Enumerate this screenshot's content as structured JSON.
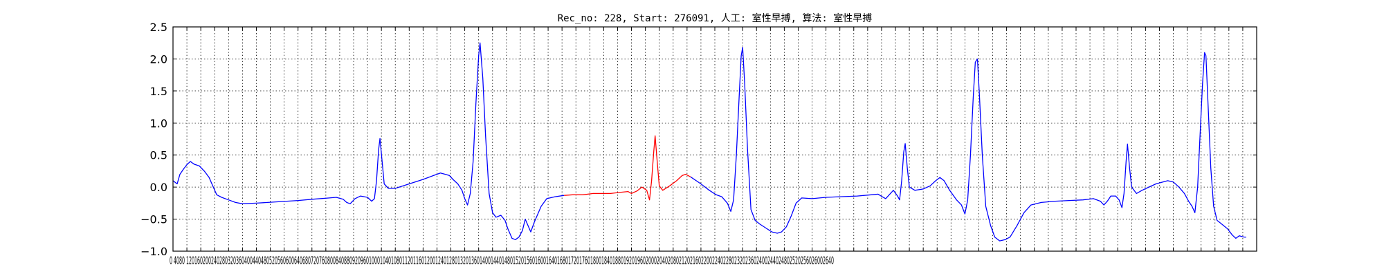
{
  "chart_data": {
    "type": "line",
    "title": "Rec_no: 228, Start: 276091, 人工: 室性早搏, 算法: 室性早搏",
    "xlabel": "",
    "ylabel": "",
    "xlim": [
      0,
      1560
    ],
    "ylim": [
      -1.0,
      2.5
    ],
    "grid": true,
    "y_ticks": [
      "−1.0",
      "−0.5",
      "0.0",
      "0.5",
      "1.0",
      "1.5",
      "2.0",
      "2.5"
    ],
    "x_ticks": [
      "0",
      "40",
      "80",
      "120",
      "160",
      "200",
      "240",
      "280",
      "320",
      "360",
      "400",
      "440",
      "480",
      "520",
      "560",
      "600",
      "640",
      "680",
      "720",
      "760",
      "800",
      "840",
      "880",
      "920",
      "960",
      "1000",
      "1040",
      "1080",
      "1120",
      "1160",
      "1200",
      "1240",
      "1280",
      "1320",
      "1360",
      "1400",
      "1440",
      "1480",
      "1520",
      "1560"
    ],
    "x_tick_text": "0 4080 120160200240280320360400440480520560600640680720760800840880920960100010401080112011601200124012801320136014001440148015201560160016401680172017601800184018801920196020002040208021202160220022402280232023602400244024802520256026002640",
    "highlight_range": [
      563,
      745
    ],
    "series": [
      {
        "color": "#0000ff",
        "points": [
          [
            0,
            0.1
          ],
          [
            6,
            0.05
          ],
          [
            10,
            0.2
          ],
          [
            15,
            0.28
          ],
          [
            20,
            0.35
          ],
          [
            25,
            0.4
          ],
          [
            30,
            0.36
          ],
          [
            38,
            0.33
          ],
          [
            45,
            0.25
          ],
          [
            52,
            0.15
          ],
          [
            58,
            0.0
          ],
          [
            63,
            -0.12
          ],
          [
            70,
            -0.16
          ],
          [
            80,
            -0.2
          ],
          [
            90,
            -0.24
          ],
          [
            100,
            -0.26
          ],
          [
            120,
            -0.25
          ],
          [
            150,
            -0.23
          ],
          [
            180,
            -0.21
          ],
          [
            200,
            -0.19
          ],
          [
            225,
            -0.17
          ],
          [
            235,
            -0.16
          ],
          [
            245,
            -0.19
          ],
          [
            250,
            -0.24
          ],
          [
            255,
            -0.26
          ],
          [
            262,
            -0.18
          ],
          [
            270,
            -0.14
          ],
          [
            280,
            -0.16
          ],
          [
            286,
            -0.22
          ],
          [
            290,
            -0.18
          ],
          [
            293,
            0.1
          ],
          [
            296,
            0.58
          ],
          [
            298,
            0.76
          ],
          [
            301,
            0.4
          ],
          [
            304,
            0.05
          ],
          [
            310,
            -0.02
          ],
          [
            320,
            -0.02
          ],
          [
            340,
            0.05
          ],
          [
            360,
            0.12
          ],
          [
            375,
            0.18
          ],
          [
            385,
            0.22
          ],
          [
            392,
            0.2
          ],
          [
            398,
            0.18
          ],
          [
            403,
            0.12
          ],
          [
            410,
            0.05
          ],
          [
            416,
            -0.05
          ],
          [
            420,
            -0.18
          ],
          [
            424,
            -0.28
          ],
          [
            428,
            -0.1
          ],
          [
            432,
            0.4
          ],
          [
            436,
            1.3
          ],
          [
            440,
            2.05
          ],
          [
            442,
            2.25
          ],
          [
            446,
            1.7
          ],
          [
            450,
            0.8
          ],
          [
            455,
            -0.1
          ],
          [
            460,
            -0.4
          ],
          [
            465,
            -0.47
          ],
          [
            472,
            -0.44
          ],
          [
            478,
            -0.52
          ],
          [
            482,
            -0.65
          ],
          [
            488,
            -0.8
          ],
          [
            493,
            -0.82
          ],
          [
            498,
            -0.78
          ],
          [
            503,
            -0.68
          ],
          [
            507,
            -0.5
          ],
          [
            511,
            -0.6
          ],
          [
            515,
            -0.7
          ],
          [
            520,
            -0.55
          ],
          [
            530,
            -0.3
          ],
          [
            538,
            -0.18
          ],
          [
            550,
            -0.15
          ],
          [
            563,
            -0.13
          ]
        ]
      },
      {
        "color": "#ff0000",
        "points": [
          [
            563,
            -0.13
          ],
          [
            575,
            -0.12
          ],
          [
            590,
            -0.12
          ],
          [
            605,
            -0.1
          ],
          [
            630,
            -0.1
          ],
          [
            645,
            -0.08
          ],
          [
            655,
            -0.07
          ],
          [
            660,
            -0.1
          ],
          [
            668,
            -0.06
          ],
          [
            675,
            -0.0
          ],
          [
            682,
            -0.05
          ],
          [
            686,
            -0.2
          ],
          [
            689,
            0.1
          ],
          [
            692,
            0.55
          ],
          [
            694,
            0.8
          ],
          [
            697,
            0.4
          ],
          [
            700,
            0.02
          ],
          [
            705,
            -0.05
          ],
          [
            715,
            0.02
          ],
          [
            725,
            0.1
          ],
          [
            733,
            0.18
          ],
          [
            738,
            0.2
          ],
          [
            745,
            0.16
          ]
        ]
      },
      {
        "color": "#0000ff",
        "points": [
          [
            745,
            0.16
          ],
          [
            760,
            0.05
          ],
          [
            772,
            -0.05
          ],
          [
            782,
            -0.12
          ],
          [
            790,
            -0.15
          ],
          [
            798,
            -0.25
          ],
          [
            803,
            -0.38
          ],
          [
            807,
            -0.2
          ],
          [
            811,
            0.5
          ],
          [
            815,
            1.4
          ],
          [
            818,
            2.05
          ],
          [
            820,
            2.18
          ],
          [
            823,
            1.6
          ],
          [
            827,
            0.6
          ],
          [
            832,
            -0.35
          ],
          [
            838,
            -0.52
          ],
          [
            845,
            -0.58
          ],
          [
            855,
            -0.65
          ],
          [
            862,
            -0.7
          ],
          [
            870,
            -0.72
          ],
          [
            876,
            -0.7
          ],
          [
            883,
            -0.62
          ],
          [
            890,
            -0.45
          ],
          [
            897,
            -0.25
          ]
        ]
      },
      {
        "color": "#0000ff",
        "points": [
          [
            897,
            -0.25
          ],
          [
            905,
            -0.17
          ],
          [
            920,
            -0.18
          ],
          [
            940,
            -0.16
          ],
          [
            960,
            -0.15
          ],
          [
            985,
            -0.14
          ],
          [
            1005,
            -0.12
          ],
          [
            1015,
            -0.11
          ],
          [
            1021,
            -0.15
          ],
          [
            1026,
            -0.18
          ],
          [
            1031,
            -0.12
          ],
          [
            1037,
            -0.05
          ],
          [
            1043,
            -0.14
          ],
          [
            1046,
            -0.2
          ],
          [
            1049,
            0.1
          ],
          [
            1052,
            0.55
          ],
          [
            1054,
            0.68
          ],
          [
            1057,
            0.3
          ],
          [
            1060,
            0.0
          ],
          [
            1068,
            -0.05
          ],
          [
            1080,
            -0.03
          ],
          [
            1090,
            0.02
          ],
          [
            1098,
            0.1
          ],
          [
            1104,
            0.15
          ],
          [
            1110,
            0.1
          ],
          [
            1118,
            -0.05
          ],
          [
            1128,
            -0.2
          ],
          [
            1135,
            -0.28
          ],
          [
            1140,
            -0.42
          ],
          [
            1144,
            -0.2
          ],
          [
            1148,
            0.5
          ],
          [
            1152,
            1.4
          ],
          [
            1155,
            1.95
          ],
          [
            1158,
            2.0
          ],
          [
            1161,
            1.4
          ],
          [
            1165,
            0.5
          ],
          [
            1170,
            -0.3
          ],
          [
            1177,
            -0.6
          ],
          [
            1183,
            -0.78
          ],
          [
            1190,
            -0.84
          ],
          [
            1198,
            -0.82
          ],
          [
            1205,
            -0.78
          ],
          [
            1215,
            -0.6
          ],
          [
            1225,
            -0.4
          ],
          [
            1235,
            -0.28
          ],
          [
            1250,
            -0.24
          ],
          [
            1270,
            -0.22
          ],
          [
            1290,
            -0.21
          ],
          [
            1310,
            -0.2
          ],
          [
            1325,
            -0.18
          ],
          [
            1335,
            -0.22
          ],
          [
            1340,
            -0.28
          ],
          [
            1345,
            -0.22
          ],
          [
            1350,
            -0.14
          ],
          [
            1357,
            -0.14
          ],
          [
            1362,
            -0.2
          ],
          [
            1366,
            -0.32
          ],
          [
            1369,
            -0.1
          ],
          [
            1372,
            0.4
          ],
          [
            1374,
            0.67
          ],
          [
            1377,
            0.3
          ],
          [
            1380,
            0.0
          ],
          [
            1387,
            -0.1
          ],
          [
            1395,
            -0.05
          ],
          [
            1405,
            0.0
          ],
          [
            1415,
            0.05
          ],
          [
            1425,
            0.08
          ],
          [
            1432,
            0.1
          ],
          [
            1440,
            0.08
          ],
          [
            1448,
            0.0
          ],
          [
            1456,
            -0.1
          ],
          [
            1462,
            -0.22
          ],
          [
            1467,
            -0.3
          ],
          [
            1471,
            -0.4
          ],
          [
            1475,
            0.0
          ],
          [
            1478,
            0.7
          ],
          [
            1482,
            1.6
          ],
          [
            1485,
            2.1
          ],
          [
            1487,
            2.05
          ],
          [
            1490,
            1.3
          ],
          [
            1494,
            0.3
          ],
          [
            1498,
            -0.3
          ],
          [
            1503,
            -0.52
          ],
          [
            1510,
            -0.58
          ],
          [
            1518,
            -0.65
          ],
          [
            1525,
            -0.75
          ],
          [
            1530,
            -0.8
          ],
          [
            1535,
            -0.76
          ],
          [
            1542,
            -0.78
          ],
          [
            1545,
            -0.78
          ]
        ]
      }
    ]
  }
}
